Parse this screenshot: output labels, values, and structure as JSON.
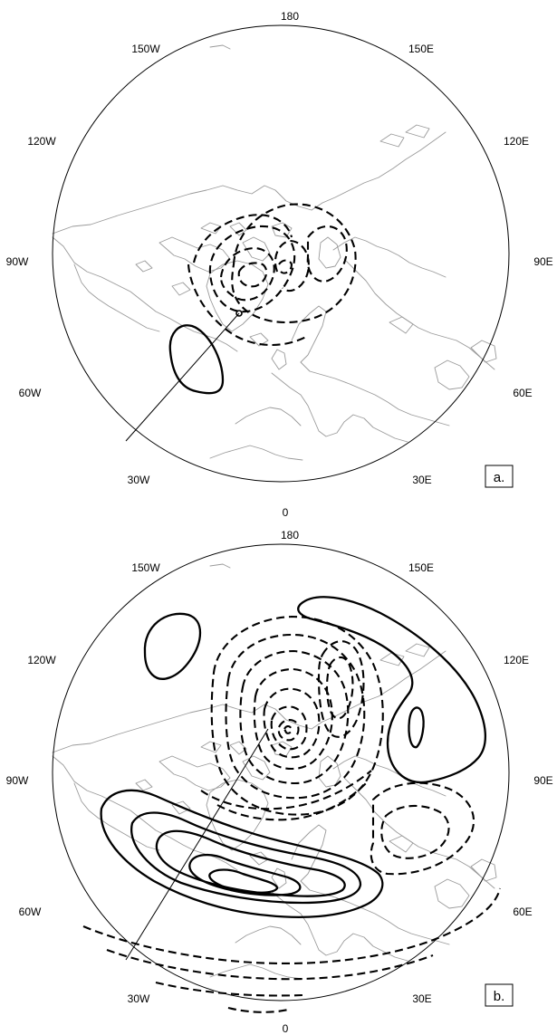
{
  "longitude_labels": {
    "top": "180",
    "upper_left": "150W",
    "upper_right": "150E",
    "left_high": "120W",
    "right_high": "120E",
    "left_mid": "90W",
    "right_mid": "90E",
    "left_low": "60W",
    "right_low": "60E",
    "lower_left": "30W",
    "lower_right": "30E",
    "bottom": "0"
  },
  "panels": [
    {
      "id": "a",
      "tag": "a."
    },
    {
      "id": "b",
      "tag": "b."
    }
  ],
  "colors": {
    "coastline": "#9a9a9a",
    "contour": "#000000",
    "background": "#ffffff"
  }
}
